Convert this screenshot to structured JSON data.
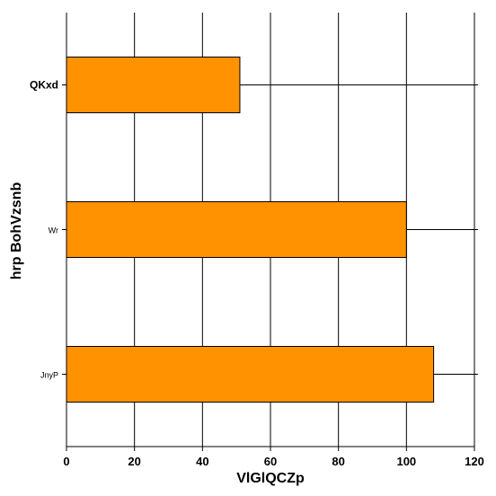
{
  "chart_data": {
    "type": "bar",
    "orientation": "horizontal",
    "categories": [
      "QKxd",
      "Wr",
      "JnyP"
    ],
    "values": [
      51,
      100,
      108
    ],
    "xlabel": "VlGlQCZp",
    "ylabel": "hrp BohVzsnb",
    "xlim": [
      0,
      120
    ],
    "xticks": [
      0,
      20,
      40,
      60,
      80,
      100,
      120
    ],
    "grid": true,
    "bar_color": "#ff9200",
    "bar_edge_color": "#000000",
    "grid_color": "#000000",
    "legend": "none"
  }
}
